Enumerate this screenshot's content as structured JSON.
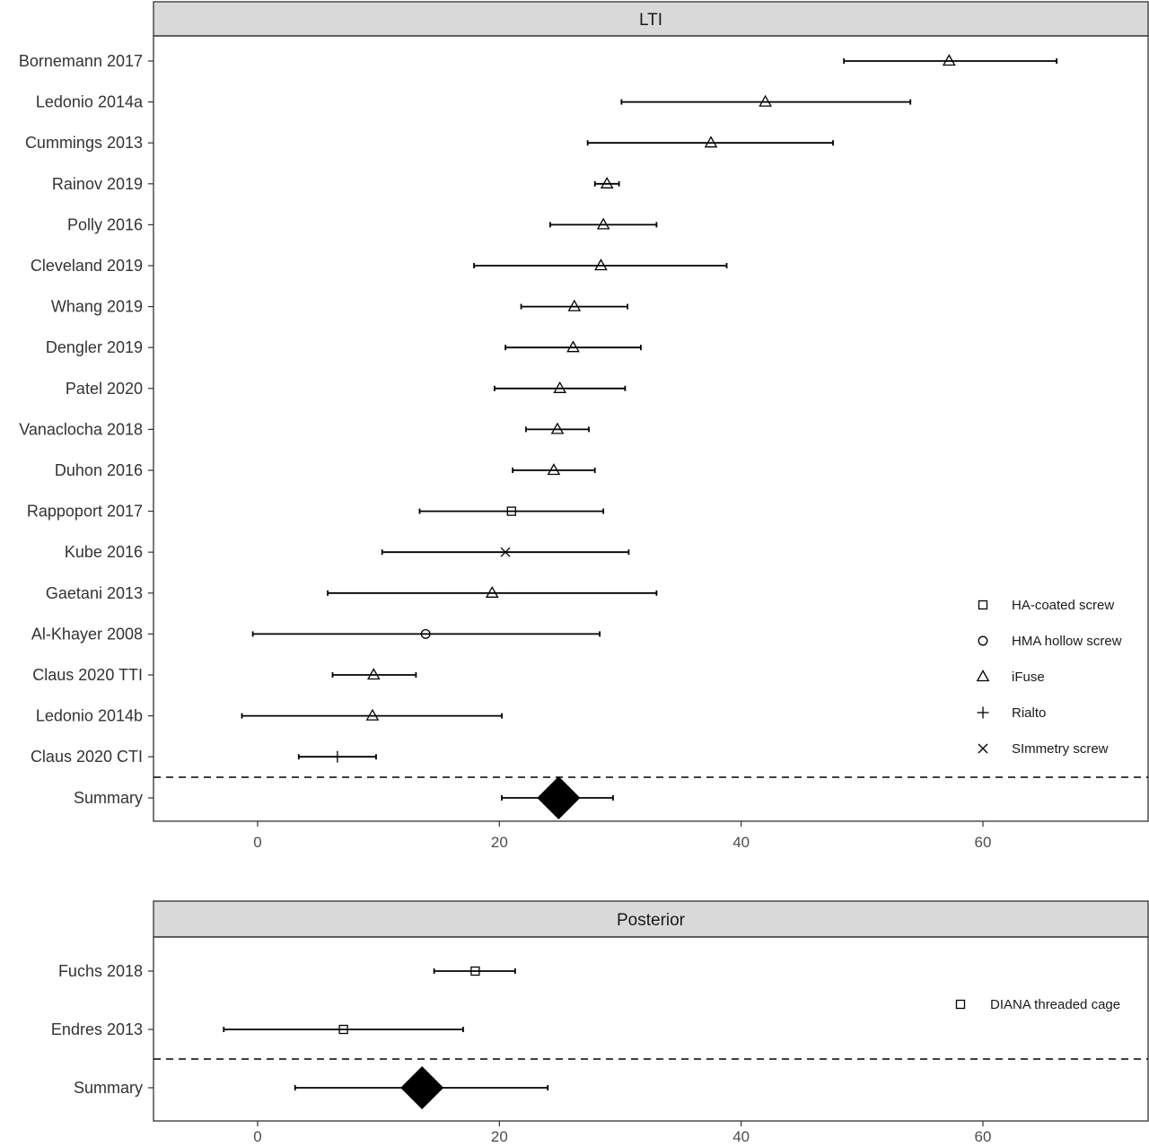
{
  "chart_data": [
    {
      "type": "forest",
      "panel_label": "LTI",
      "xlim": [
        -8.7,
        73.5
      ],
      "xticks": [
        0,
        20,
        40,
        60
      ],
      "grid": false,
      "legend_position": "right-bottom inside",
      "legend": [
        {
          "label": "HA-coated screw",
          "symbol": "square"
        },
        {
          "label": "HMA hollow screw",
          "symbol": "circle"
        },
        {
          "label": "iFuse",
          "symbol": "triangle"
        },
        {
          "label": "Rialto",
          "symbol": "plus"
        },
        {
          "label": "SImmetry screw",
          "symbol": "cross"
        }
      ],
      "studies": [
        {
          "label": "Bornemann 2017",
          "estimate": 57.2,
          "lower": 48.5,
          "upper": 66.1,
          "symbol": "triangle"
        },
        {
          "label": "Ledonio 2014a",
          "estimate": 42.0,
          "lower": 30.1,
          "upper": 54.0,
          "symbol": "triangle"
        },
        {
          "label": "Cummings 2013",
          "estimate": 37.5,
          "lower": 27.3,
          "upper": 47.6,
          "symbol": "triangle"
        },
        {
          "label": "Rainov 2019",
          "estimate": 28.9,
          "lower": 27.9,
          "upper": 29.9,
          "symbol": "triangle"
        },
        {
          "label": "Polly 2016",
          "estimate": 28.6,
          "lower": 24.2,
          "upper": 33.0,
          "symbol": "triangle"
        },
        {
          "label": "Cleveland 2019",
          "estimate": 28.4,
          "lower": 17.9,
          "upper": 38.8,
          "symbol": "triangle"
        },
        {
          "label": "Whang 2019",
          "estimate": 26.2,
          "lower": 21.8,
          "upper": 30.6,
          "symbol": "triangle"
        },
        {
          "label": "Dengler 2019",
          "estimate": 26.1,
          "lower": 20.5,
          "upper": 31.7,
          "symbol": "triangle"
        },
        {
          "label": "Patel 2020",
          "estimate": 25.0,
          "lower": 19.6,
          "upper": 30.4,
          "symbol": "triangle"
        },
        {
          "label": "Vanaclocha 2018",
          "estimate": 24.8,
          "lower": 22.2,
          "upper": 27.4,
          "symbol": "triangle"
        },
        {
          "label": "Duhon 2016",
          "estimate": 24.5,
          "lower": 21.1,
          "upper": 27.9,
          "symbol": "triangle"
        },
        {
          "label": "Rappoport 2017",
          "estimate": 21.0,
          "lower": 13.4,
          "upper": 28.6,
          "symbol": "square"
        },
        {
          "label": "Kube 2016",
          "estimate": 20.5,
          "lower": 10.3,
          "upper": 30.7,
          "symbol": "cross"
        },
        {
          "label": "Gaetani 2013",
          "estimate": 19.4,
          "lower": 5.8,
          "upper": 33.0,
          "symbol": "triangle"
        },
        {
          "label": "Al-Khayer 2008",
          "estimate": 13.9,
          "lower": -0.4,
          "upper": 28.3,
          "symbol": "circle"
        },
        {
          "label": "Claus 2020 TTI",
          "estimate": 9.6,
          "lower": 6.2,
          "upper": 13.1,
          "symbol": "triangle"
        },
        {
          "label": "Ledonio 2014b",
          "estimate": 9.5,
          "lower": -1.3,
          "upper": 20.2,
          "symbol": "triangle"
        },
        {
          "label": "Claus 2020 CTI",
          "estimate": 6.6,
          "lower": 3.4,
          "upper": 9.8,
          "symbol": "plus"
        }
      ],
      "summary": {
        "label": "Summary",
        "estimate": 24.9,
        "lower": 20.2,
        "upper": 29.4
      }
    },
    {
      "type": "forest",
      "panel_label": "Posterior",
      "xlim": [
        -8.7,
        73.5
      ],
      "xticks": [
        0,
        20,
        40,
        60
      ],
      "grid": false,
      "legend_position": "right inside",
      "legend": [
        {
          "label": "DIANA threaded cage",
          "symbol": "square"
        }
      ],
      "studies": [
        {
          "label": "Fuchs 2018",
          "estimate": 18.0,
          "lower": 14.6,
          "upper": 21.3,
          "symbol": "square"
        },
        {
          "label": "Endres 2013",
          "estimate": 7.1,
          "lower": -2.8,
          "upper": 17.0,
          "symbol": "square"
        }
      ],
      "summary": {
        "label": "Summary",
        "estimate": 13.6,
        "lower": 3.1,
        "upper": 24.0
      }
    }
  ]
}
